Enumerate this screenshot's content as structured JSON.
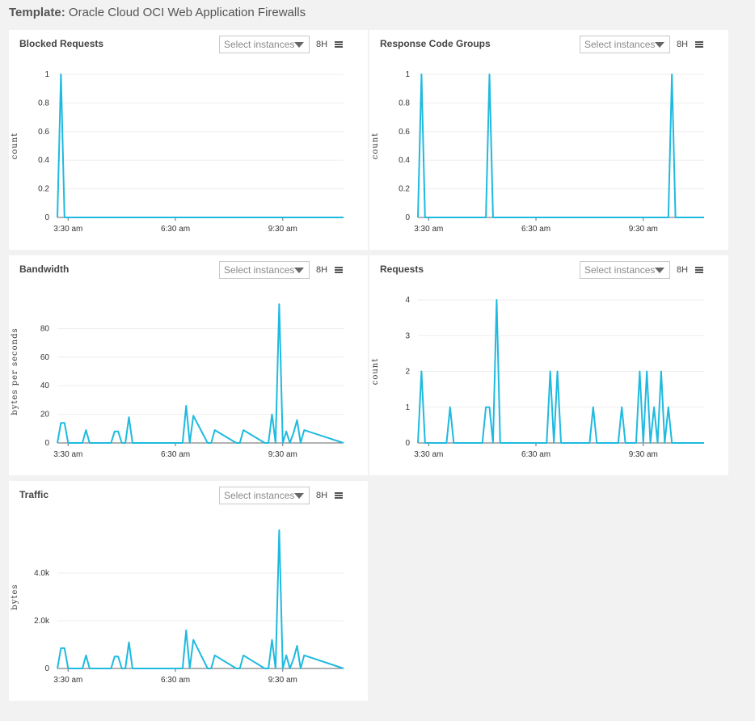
{
  "header": {
    "label": "Template:",
    "name": "Oracle Cloud OCI Web Application Firewalls"
  },
  "colors": {
    "series": "#1fbadf",
    "grid": "#eeeeee",
    "axis": "#666666"
  },
  "panels": [
    {
      "title": "Blocked Requests",
      "select_placeholder": "Select instances",
      "time_range": "8H",
      "icon": "list-icon"
    },
    {
      "title": "Response Code Groups",
      "select_placeholder": "Select instances",
      "time_range": "8H",
      "icon": "list-icon"
    },
    {
      "title": "Bandwidth",
      "select_placeholder": "Select instances",
      "time_range": "8H",
      "icon": "list-icon"
    },
    {
      "title": "Requests",
      "select_placeholder": "Select instances",
      "time_range": "8H",
      "icon": "list-icon"
    },
    {
      "title": "Traffic",
      "select_placeholder": "Select instances",
      "time_range": "8H",
      "icon": "list-icon"
    }
  ],
  "chart_data": [
    {
      "type": "line",
      "ylabel": "count",
      "ylim": [
        0,
        1
      ],
      "yticks": [
        "0",
        "0.2",
        "0.4",
        "0.6",
        "0.8",
        "1"
      ],
      "ytick_values": [
        0,
        0.2,
        0.4,
        0.6,
        0.8,
        1
      ],
      "xlim": [
        0,
        80
      ],
      "xticks": [
        "3:30 am",
        "6:30 am",
        "9:30 am"
      ],
      "xtick_values": [
        3,
        33,
        63
      ],
      "x": [
        0,
        1,
        2,
        80
      ],
      "values": [
        0,
        1,
        0,
        0
      ],
      "grid": true
    },
    {
      "type": "line",
      "ylabel": "count",
      "ylim": [
        0,
        1
      ],
      "yticks": [
        "0",
        "0.2",
        "0.4",
        "0.6",
        "0.8",
        "1"
      ],
      "ytick_values": [
        0,
        0.2,
        0.4,
        0.6,
        0.8,
        1
      ],
      "xlim": [
        0,
        80
      ],
      "xticks": [
        "3:30 am",
        "6:30 am",
        "9:30 am"
      ],
      "xtick_values": [
        3,
        33,
        63
      ],
      "x": [
        0,
        1,
        2,
        19,
        20,
        21,
        70,
        71,
        72,
        80
      ],
      "values": [
        0,
        1,
        0,
        0,
        1,
        0,
        0,
        1,
        0,
        0
      ],
      "grid": true
    },
    {
      "type": "line",
      "ylabel": "bytes per seconds",
      "ylim": [
        0,
        100
      ],
      "yticks": [
        "0",
        "20",
        "40",
        "60",
        "80"
      ],
      "ytick_values": [
        0,
        20,
        40,
        60,
        80
      ],
      "xlim": [
        0,
        80
      ],
      "xticks": [
        "3:30 am",
        "6:30 am",
        "9:30 am"
      ],
      "xtick_values": [
        3,
        33,
        63
      ],
      "x": [
        0,
        1,
        2,
        3,
        7,
        8,
        9,
        15,
        16,
        17,
        18,
        19,
        20,
        21,
        35,
        36,
        37,
        38,
        42,
        43,
        44,
        50,
        51,
        52,
        58,
        59,
        60,
        61,
        62,
        63,
        64,
        65,
        66,
        67,
        68,
        69,
        80
      ],
      "values": [
        0,
        14,
        14,
        0,
        0,
        9,
        0,
        0,
        8,
        8,
        0,
        0,
        18,
        0,
        0,
        26,
        0,
        19,
        0,
        0,
        9,
        0,
        0,
        9,
        0,
        0,
        20,
        0,
        97,
        0,
        8,
        0,
        7,
        16,
        0,
        9,
        0
      ],
      "grid": true
    },
    {
      "type": "line",
      "ylabel": "count",
      "ylim": [
        0,
        4
      ],
      "yticks": [
        "0",
        "1",
        "2",
        "3",
        "4"
      ],
      "ytick_values": [
        0,
        1,
        2,
        3,
        4
      ],
      "xlim": [
        0,
        80
      ],
      "xticks": [
        "3:30 am",
        "6:30 am",
        "9:30 am"
      ],
      "xtick_values": [
        3,
        33,
        63
      ],
      "x": [
        0,
        1,
        2,
        8,
        9,
        10,
        18,
        19,
        20,
        21,
        22,
        23,
        24,
        36,
        37,
        38,
        39,
        40,
        48,
        49,
        50,
        56,
        57,
        58,
        61,
        62,
        63,
        64,
        65,
        66,
        67,
        68,
        69,
        70,
        71,
        80
      ],
      "values": [
        0,
        2,
        0,
        0,
        1,
        0,
        0,
        1,
        1,
        0,
        4,
        0,
        0,
        0,
        2,
        0,
        2,
        0,
        0,
        1,
        0,
        0,
        1,
        0,
        0,
        2,
        0,
        2,
        0,
        1,
        0,
        2,
        0,
        1,
        0,
        0
      ],
      "grid": true
    },
    {
      "type": "line",
      "ylabel": "bytes",
      "ylim": [
        0,
        6000
      ],
      "yticks": [
        "0",
        "2.0k",
        "4.0k"
      ],
      "ytick_values": [
        0,
        2000,
        4000
      ],
      "xlim": [
        0,
        80
      ],
      "xticks": [
        "3:30 am",
        "6:30 am",
        "9:30 am"
      ],
      "xtick_values": [
        3,
        33,
        63
      ],
      "x": [
        0,
        1,
        2,
        3,
        7,
        8,
        9,
        15,
        16,
        17,
        18,
        19,
        20,
        21,
        35,
        36,
        37,
        38,
        42,
        43,
        44,
        50,
        51,
        52,
        58,
        59,
        60,
        61,
        62,
        63,
        64,
        65,
        66,
        67,
        68,
        69,
        80
      ],
      "values": [
        0,
        850,
        850,
        0,
        0,
        550,
        0,
        0,
        500,
        500,
        0,
        0,
        1100,
        0,
        0,
        1600,
        0,
        1200,
        0,
        0,
        550,
        0,
        0,
        550,
        0,
        0,
        1200,
        0,
        5800,
        0,
        550,
        0,
        400,
        950,
        0,
        550,
        0
      ],
      "grid": true
    }
  ]
}
